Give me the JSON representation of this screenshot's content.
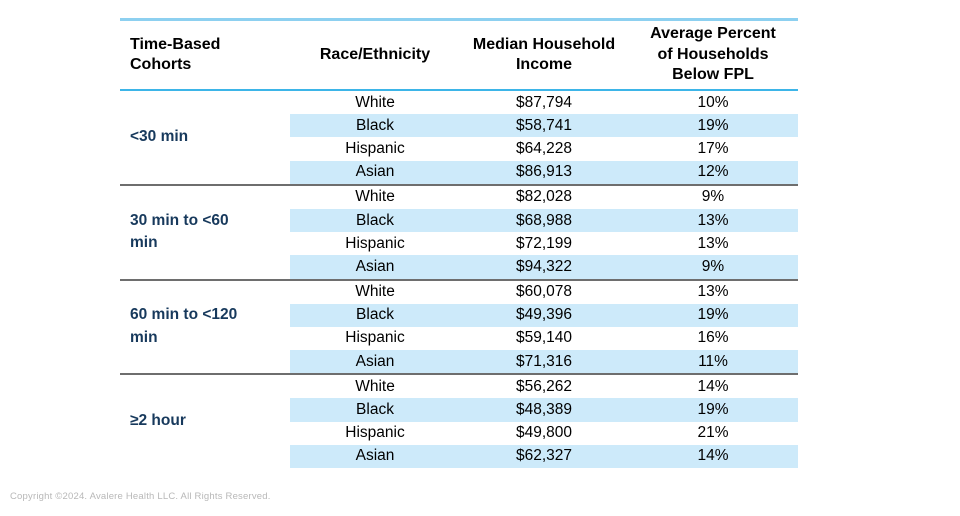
{
  "chart_data": {
    "type": "table",
    "title": "",
    "columns": [
      "Time-Based Cohorts",
      "Race/Ethnicity",
      "Median Household Income",
      "Average Percent of Households Below FPL"
    ],
    "groups": [
      {
        "cohort": "<30 min",
        "rows": [
          {
            "race": "White",
            "income": "$87,794",
            "fpl": "10%"
          },
          {
            "race": "Black",
            "income": "$58,741",
            "fpl": "19%"
          },
          {
            "race": "Hispanic",
            "income": "$64,228",
            "fpl": "17%"
          },
          {
            "race": "Asian",
            "income": "$86,913",
            "fpl": "12%"
          }
        ]
      },
      {
        "cohort": "30 min to <60 min",
        "rows": [
          {
            "race": "White",
            "income": "$82,028",
            "fpl": "9%"
          },
          {
            "race": "Black",
            "income": "$68,988",
            "fpl": "13%"
          },
          {
            "race": "Hispanic",
            "income": "$72,199",
            "fpl": "13%"
          },
          {
            "race": "Asian",
            "income": "$94,322",
            "fpl": "9%"
          }
        ]
      },
      {
        "cohort": "60 min to <120 min",
        "rows": [
          {
            "race": "White",
            "income": "$60,078",
            "fpl": "13%"
          },
          {
            "race": "Black",
            "income": "$49,396",
            "fpl": "19%"
          },
          {
            "race": "Hispanic",
            "income": "$59,140",
            "fpl": "16%"
          },
          {
            "race": "Asian",
            "income": "$71,316",
            "fpl": "11%"
          }
        ]
      },
      {
        "cohort": "≥2 hour",
        "rows": [
          {
            "race": "White",
            "income": "$56,262",
            "fpl": "14%"
          },
          {
            "race": "Black",
            "income": "$48,389",
            "fpl": "19%"
          },
          {
            "race": "Hispanic",
            "income": "$49,800",
            "fpl": "21%"
          },
          {
            "race": "Asian",
            "income": "$62,327",
            "fpl": "14%"
          }
        ]
      }
    ],
    "striped_row_indices": [
      1,
      3
    ],
    "legend_position": "none",
    "grid": "group-dividers"
  },
  "colors": {
    "accent_top_rule": "#8dd0f0",
    "accent_header_rule": "#3db5e8",
    "row_stripe": "#cdeafa",
    "group_divider": "#6e6e6e",
    "cohort_text": "#17395c",
    "body_text": "#000000",
    "copyright_text": "#b8b8b8"
  },
  "footer": {
    "copyright": "Copyright ©2024. Avalere Health LLC. All Rights Reserved."
  }
}
